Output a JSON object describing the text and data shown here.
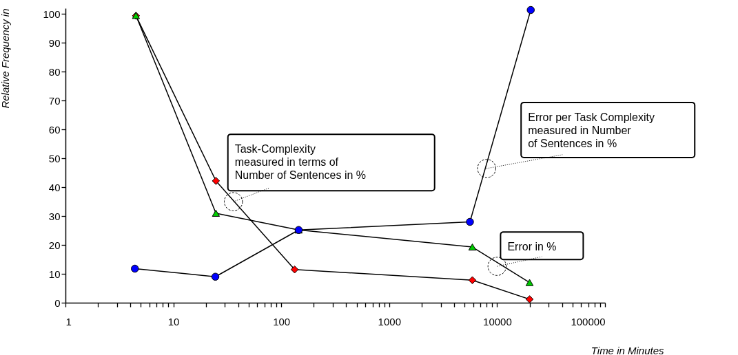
{
  "chart_data": {
    "type": "line",
    "xlabel": "Time in Minutes",
    "ylabel": "Relative Frequency in",
    "log": "x",
    "xlim": [
      1,
      100000
    ],
    "ylim": [
      0,
      102
    ],
    "xticks": [
      1,
      {
        "value": 2,
        "label": null
      },
      {
        "value": 3,
        "label": null
      },
      {
        "value": 4,
        "label": null
      },
      {
        "value": 5,
        "label": null
      },
      {
        "value": 6,
        "label": null
      },
      {
        "value": 7,
        "label": null
      },
      {
        "value": 8,
        "label": null
      },
      {
        "value": 9,
        "label": null
      },
      10,
      {
        "value": 20,
        "label": null
      },
      {
        "value": 30,
        "label": null
      },
      {
        "value": 40,
        "label": null
      },
      {
        "value": 50,
        "label": null
      },
      {
        "value": 60,
        "label": null
      },
      {
        "value": 70,
        "label": null
      },
      {
        "value": 80,
        "label": null
      },
      {
        "value": 90,
        "label": null
      },
      100,
      {
        "value": 200,
        "label": null
      },
      {
        "value": 300,
        "label": null
      },
      {
        "value": 400,
        "label": null
      },
      {
        "value": 500,
        "label": null
      },
      {
        "value": 600,
        "label": null
      },
      {
        "value": 700,
        "label": null
      },
      {
        "value": 800,
        "label": null
      },
      {
        "value": 900,
        "label": null
      },
      1000,
      {
        "value": 2000,
        "label": null
      },
      {
        "value": 3000,
        "label": null
      },
      {
        "value": 4000,
        "label": null
      },
      {
        "value": 5000,
        "label": null
      },
      {
        "value": 6000,
        "label": null
      },
      {
        "value": 7000,
        "label": null
      },
      {
        "value": 8000,
        "label": null
      },
      {
        "value": 9000,
        "label": null
      },
      10000,
      {
        "value": 20000,
        "label": null
      },
      {
        "value": 30000,
        "label": null
      },
      {
        "value": 40000,
        "label": null
      },
      {
        "value": 50000,
        "label": null
      },
      {
        "value": 60000,
        "label": null
      },
      {
        "value": 70000,
        "label": null
      },
      {
        "value": 80000,
        "label": null
      },
      {
        "value": 90000,
        "label": null
      },
      100000
    ],
    "yticks": [
      0,
      10,
      20,
      30,
      40,
      50,
      60,
      70,
      80,
      90,
      100
    ],
    "grid": false,
    "series": [
      {
        "color": "#ff0000",
        "marker": "diamond",
        "x": [
          4.5,
          24.8,
          133,
          5900,
          20000
        ],
        "values": [
          99.4,
          42.2,
          11.5,
          7.8,
          1.2
        ]
      },
      {
        "color": "#00cc00",
        "marker": "triangle",
        "x": [
          4.5,
          24.8,
          145,
          5900,
          20000
        ],
        "values": [
          99.5,
          31,
          25.2,
          19.3,
          7
        ]
      },
      {
        "color": "#0000ff",
        "marker": "circle",
        "x": [
          4.4,
          24.5,
          145,
          5600,
          20500
        ],
        "values": [
          11.8,
          9,
          25.2,
          28,
          101.4
        ]
      }
    ],
    "annotations": [
      {
        "text": "Task-Complexity\nmeasured in terms of\nNumber of Sentences in %",
        "x": 36,
        "y": 35
      },
      {
        "text": "Error per Task Complexity\nmeasured in Number\nof Sentences in %",
        "x": 8000,
        "y": 46.5
      },
      {
        "text": "Error in %",
        "x": 10000,
        "y": 12.6
      }
    ]
  }
}
